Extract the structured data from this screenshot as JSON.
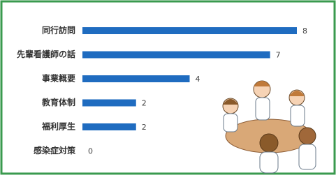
{
  "chart_data": {
    "type": "bar",
    "orientation": "horizontal",
    "categories": [
      "同行訪問",
      "先輩看護師の話",
      "事業概要",
      "教育体制",
      "福利厚生",
      "感染症対策"
    ],
    "values": [
      8,
      7,
      4,
      2,
      2,
      0
    ],
    "color": "#1f6cc0"
  }
}
